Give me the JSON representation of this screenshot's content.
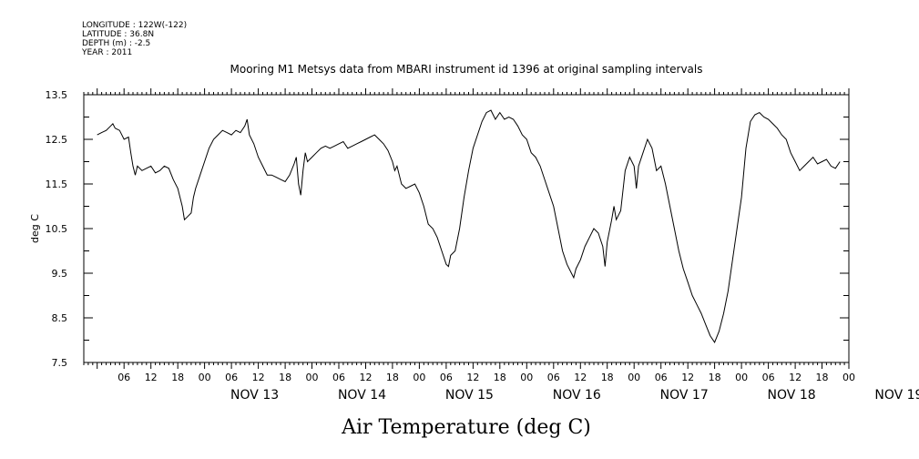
{
  "header": {
    "longitude": "LONGITUDE : 122W(-122)",
    "latitude": "LATITUDE : 36.8N",
    "depth": "DEPTH (m) : -2.5",
    "year": "YEAR : 2011"
  },
  "chart_data": {
    "type": "line",
    "title": "Mooring M1 Metsys data from MBARI instrument id 1396 at original sampling intervals",
    "xlabel": "Air Temperature (deg C)",
    "ylabel": "deg C",
    "x_unit": "hours since NOV 12 2011 00:00",
    "xlim": [
      -3,
      168
    ],
    "ylim": [
      7.5,
      13.5
    ],
    "y_ticks": [
      7.5,
      8.5,
      9.5,
      10.5,
      11.5,
      12.5,
      13.5
    ],
    "y_tick_labels": [
      "7.5",
      "8.5",
      "9.5",
      "10.5",
      "11.5",
      "12.5",
      "13.5"
    ],
    "x_hour_ticks": [
      "06",
      "12",
      "18",
      "00"
    ],
    "day_labels": [
      "NOV 13",
      "NOV 14",
      "NOV 15",
      "NOV 16",
      "NOV 17",
      "NOV 18",
      "NOV 19"
    ],
    "grid": false,
    "legend": "none",
    "series": [
      {
        "color": "#000000",
        "points": [
          [
            0,
            12.6
          ],
          [
            1,
            12.65
          ],
          [
            2,
            12.7
          ],
          [
            3,
            12.8
          ],
          [
            3.5,
            12.85
          ],
          [
            4,
            12.75
          ],
          [
            5,
            12.7
          ],
          [
            6,
            12.5
          ],
          [
            7,
            12.55
          ],
          [
            7.5,
            12.2
          ],
          [
            8,
            11.9
          ],
          [
            8.5,
            11.7
          ],
          [
            9,
            11.9
          ],
          [
            10,
            11.8
          ],
          [
            11,
            11.85
          ],
          [
            12,
            11.9
          ],
          [
            13,
            11.75
          ],
          [
            14,
            11.8
          ],
          [
            15,
            11.9
          ],
          [
            16,
            11.85
          ],
          [
            17,
            11.6
          ],
          [
            18,
            11.4
          ],
          [
            19,
            11.0
          ],
          [
            19.5,
            10.7
          ],
          [
            20,
            10.75
          ],
          [
            21,
            10.85
          ],
          [
            21.5,
            11.2
          ],
          [
            22,
            11.4
          ],
          [
            23,
            11.7
          ],
          [
            24,
            12.0
          ],
          [
            25,
            12.3
          ],
          [
            26,
            12.5
          ],
          [
            27,
            12.6
          ],
          [
            28,
            12.7
          ],
          [
            29,
            12.65
          ],
          [
            30,
            12.6
          ],
          [
            31,
            12.7
          ],
          [
            32,
            12.65
          ],
          [
            33,
            12.8
          ],
          [
            33.5,
            12.95
          ],
          [
            34,
            12.6
          ],
          [
            35,
            12.4
          ],
          [
            36,
            12.1
          ],
          [
            37,
            11.9
          ],
          [
            38,
            11.7
          ],
          [
            39,
            11.7
          ],
          [
            40,
            11.65
          ],
          [
            41,
            11.6
          ],
          [
            42,
            11.55
          ],
          [
            43,
            11.7
          ],
          [
            44,
            11.95
          ],
          [
            44.5,
            12.1
          ],
          [
            45,
            11.5
          ],
          [
            45.5,
            11.25
          ],
          [
            46,
            11.8
          ],
          [
            46.5,
            12.2
          ],
          [
            47,
            12.0
          ],
          [
            48,
            12.1
          ],
          [
            49,
            12.2
          ],
          [
            50,
            12.3
          ],
          [
            51,
            12.35
          ],
          [
            52,
            12.3
          ],
          [
            53,
            12.35
          ],
          [
            54,
            12.4
          ],
          [
            55,
            12.45
          ],
          [
            56,
            12.3
          ],
          [
            57,
            12.35
          ],
          [
            58,
            12.4
          ],
          [
            59,
            12.45
          ],
          [
            60,
            12.5
          ],
          [
            61,
            12.55
          ],
          [
            62,
            12.6
          ],
          [
            63,
            12.5
          ],
          [
            64,
            12.4
          ],
          [
            65,
            12.25
          ],
          [
            66,
            12.0
          ],
          [
            66.5,
            11.8
          ],
          [
            67,
            11.9
          ],
          [
            68,
            11.5
          ],
          [
            69,
            11.4
          ],
          [
            70,
            11.45
          ],
          [
            71,
            11.5
          ],
          [
            72,
            11.3
          ],
          [
            73,
            11.0
          ],
          [
            74,
            10.6
          ],
          [
            75,
            10.5
          ],
          [
            76,
            10.3
          ],
          [
            77,
            10.0
          ],
          [
            78,
            9.7
          ],
          [
            78.5,
            9.65
          ],
          [
            79,
            9.9
          ],
          [
            80,
            10.0
          ],
          [
            81,
            10.5
          ],
          [
            82,
            11.2
          ],
          [
            83,
            11.8
          ],
          [
            84,
            12.3
          ],
          [
            85,
            12.6
          ],
          [
            86,
            12.9
          ],
          [
            87,
            13.1
          ],
          [
            88,
            13.15
          ],
          [
            89,
            12.95
          ],
          [
            90,
            13.1
          ],
          [
            91,
            12.95
          ],
          [
            92,
            13.0
          ],
          [
            93,
            12.95
          ],
          [
            94,
            12.8
          ],
          [
            95,
            12.6
          ],
          [
            96,
            12.5
          ],
          [
            97,
            12.2
          ],
          [
            98,
            12.1
          ],
          [
            99,
            11.9
          ],
          [
            100,
            11.6
          ],
          [
            101,
            11.3
          ],
          [
            102,
            11.0
          ],
          [
            103,
            10.5
          ],
          [
            104,
            10.0
          ],
          [
            105,
            9.7
          ],
          [
            106,
            9.5
          ],
          [
            106.5,
            9.4
          ],
          [
            107,
            9.6
          ],
          [
            108,
            9.8
          ],
          [
            109,
            10.1
          ],
          [
            110,
            10.3
          ],
          [
            111,
            10.5
          ],
          [
            112,
            10.4
          ],
          [
            113,
            10.1
          ],
          [
            113.5,
            9.65
          ],
          [
            114,
            10.2
          ],
          [
            115,
            10.7
          ],
          [
            115.5,
            11.0
          ],
          [
            116,
            10.7
          ],
          [
            117,
            10.9
          ],
          [
            118,
            11.8
          ],
          [
            119,
            12.1
          ],
          [
            120,
            11.9
          ],
          [
            120.5,
            11.4
          ],
          [
            121,
            11.9
          ],
          [
            122,
            12.2
          ],
          [
            123,
            12.5
          ],
          [
            124,
            12.3
          ],
          [
            125,
            11.8
          ],
          [
            126,
            11.9
          ],
          [
            127,
            11.5
          ],
          [
            128,
            11.0
          ],
          [
            129,
            10.5
          ],
          [
            130,
            10.0
          ],
          [
            131,
            9.6
          ],
          [
            132,
            9.3
          ],
          [
            133,
            9.0
          ],
          [
            134,
            8.8
          ],
          [
            135,
            8.6
          ],
          [
            136,
            8.35
          ],
          [
            137,
            8.1
          ],
          [
            138,
            7.95
          ],
          [
            139,
            8.2
          ],
          [
            140,
            8.6
          ],
          [
            141,
            9.1
          ],
          [
            142,
            9.8
          ],
          [
            143,
            10.5
          ],
          [
            144,
            11.2
          ],
          [
            145,
            12.3
          ],
          [
            146,
            12.9
          ],
          [
            147,
            13.05
          ],
          [
            148,
            13.1
          ],
          [
            149,
            13.0
          ],
          [
            150,
            12.95
          ],
          [
            151,
            12.85
          ],
          [
            152,
            12.75
          ],
          [
            153,
            12.6
          ],
          [
            154,
            12.5
          ],
          [
            155,
            12.2
          ],
          [
            156,
            12.0
          ],
          [
            157,
            11.8
          ],
          [
            158,
            11.9
          ],
          [
            159,
            12.0
          ],
          [
            160,
            12.1
          ],
          [
            161,
            11.95
          ],
          [
            162,
            12.0
          ],
          [
            163,
            12.05
          ],
          [
            164,
            11.9
          ],
          [
            165,
            11.85
          ],
          [
            166,
            12.0
          ]
        ]
      }
    ]
  }
}
